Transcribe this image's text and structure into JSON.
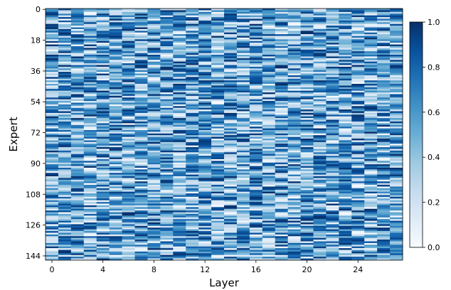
{
  "chart_data": {
    "type": "heatmap",
    "xlabel": "Layer",
    "ylabel": "Expert",
    "x_count": 28,
    "y_count": 147,
    "x_ticks": [
      "0",
      "4",
      "8",
      "12",
      "16",
      "20",
      "24"
    ],
    "x_tick_values": [
      0,
      4,
      8,
      12,
      16,
      20,
      24
    ],
    "y_ticks": [
      "0",
      "18",
      "36",
      "54",
      "72",
      "90",
      "108",
      "126",
      "144"
    ],
    "y_tick_values": [
      0,
      18,
      36,
      54,
      72,
      90,
      108,
      126,
      144
    ],
    "colorbar": {
      "min": 0.0,
      "max": 1.0,
      "ticks": [
        "0.0",
        "0.2",
        "0.4",
        "0.6",
        "0.8",
        "1.0"
      ],
      "tick_values": [
        0.0,
        0.2,
        0.4,
        0.6,
        0.8,
        1.0
      ]
    },
    "colormap": "Blues",
    "colors": {
      "low": "#f7fbff",
      "high": "#08306b"
    },
    "value_range": [
      0.0,
      1.0
    ],
    "pattern": "values vary without an obvious trend across layers and experts, spanning the full 0.0-1.0 range"
  }
}
